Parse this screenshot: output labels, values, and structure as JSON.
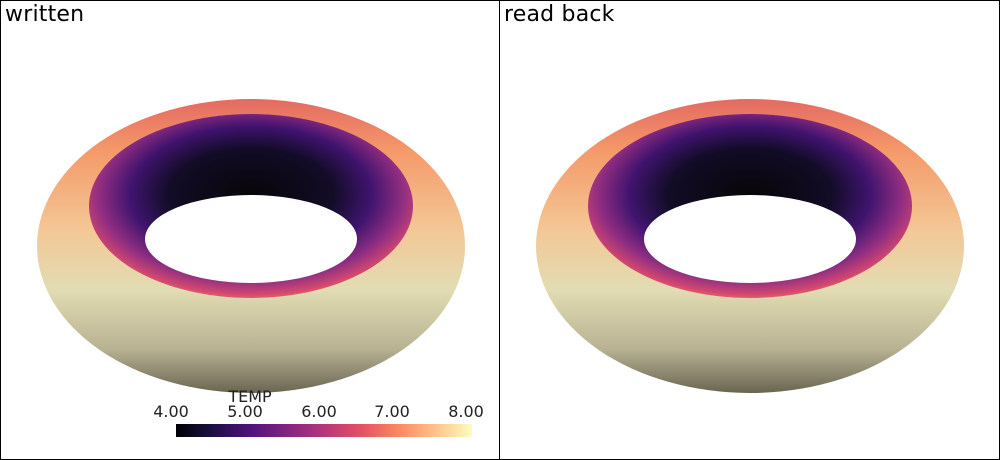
{
  "viewports": [
    {
      "title": "written"
    },
    {
      "title": "read back"
    }
  ],
  "colorbar": {
    "title": "TEMP",
    "ticks": [
      "4.00",
      "5.00",
      "6.00",
      "7.00",
      "8.00"
    ],
    "colormap": [
      "#000004",
      "#1c1044",
      "#4f127b",
      "#812581",
      "#b5367a",
      "#e55064",
      "#fb8761",
      "#fec287",
      "#fcfdbf"
    ]
  },
  "torus_shading": {
    "outer_near": "#6e6a54",
    "outer_mid": "#e0dcb4",
    "outer_far": "#e46a62",
    "inner_hot": "#f28a60",
    "inner_dark": "#000004"
  }
}
